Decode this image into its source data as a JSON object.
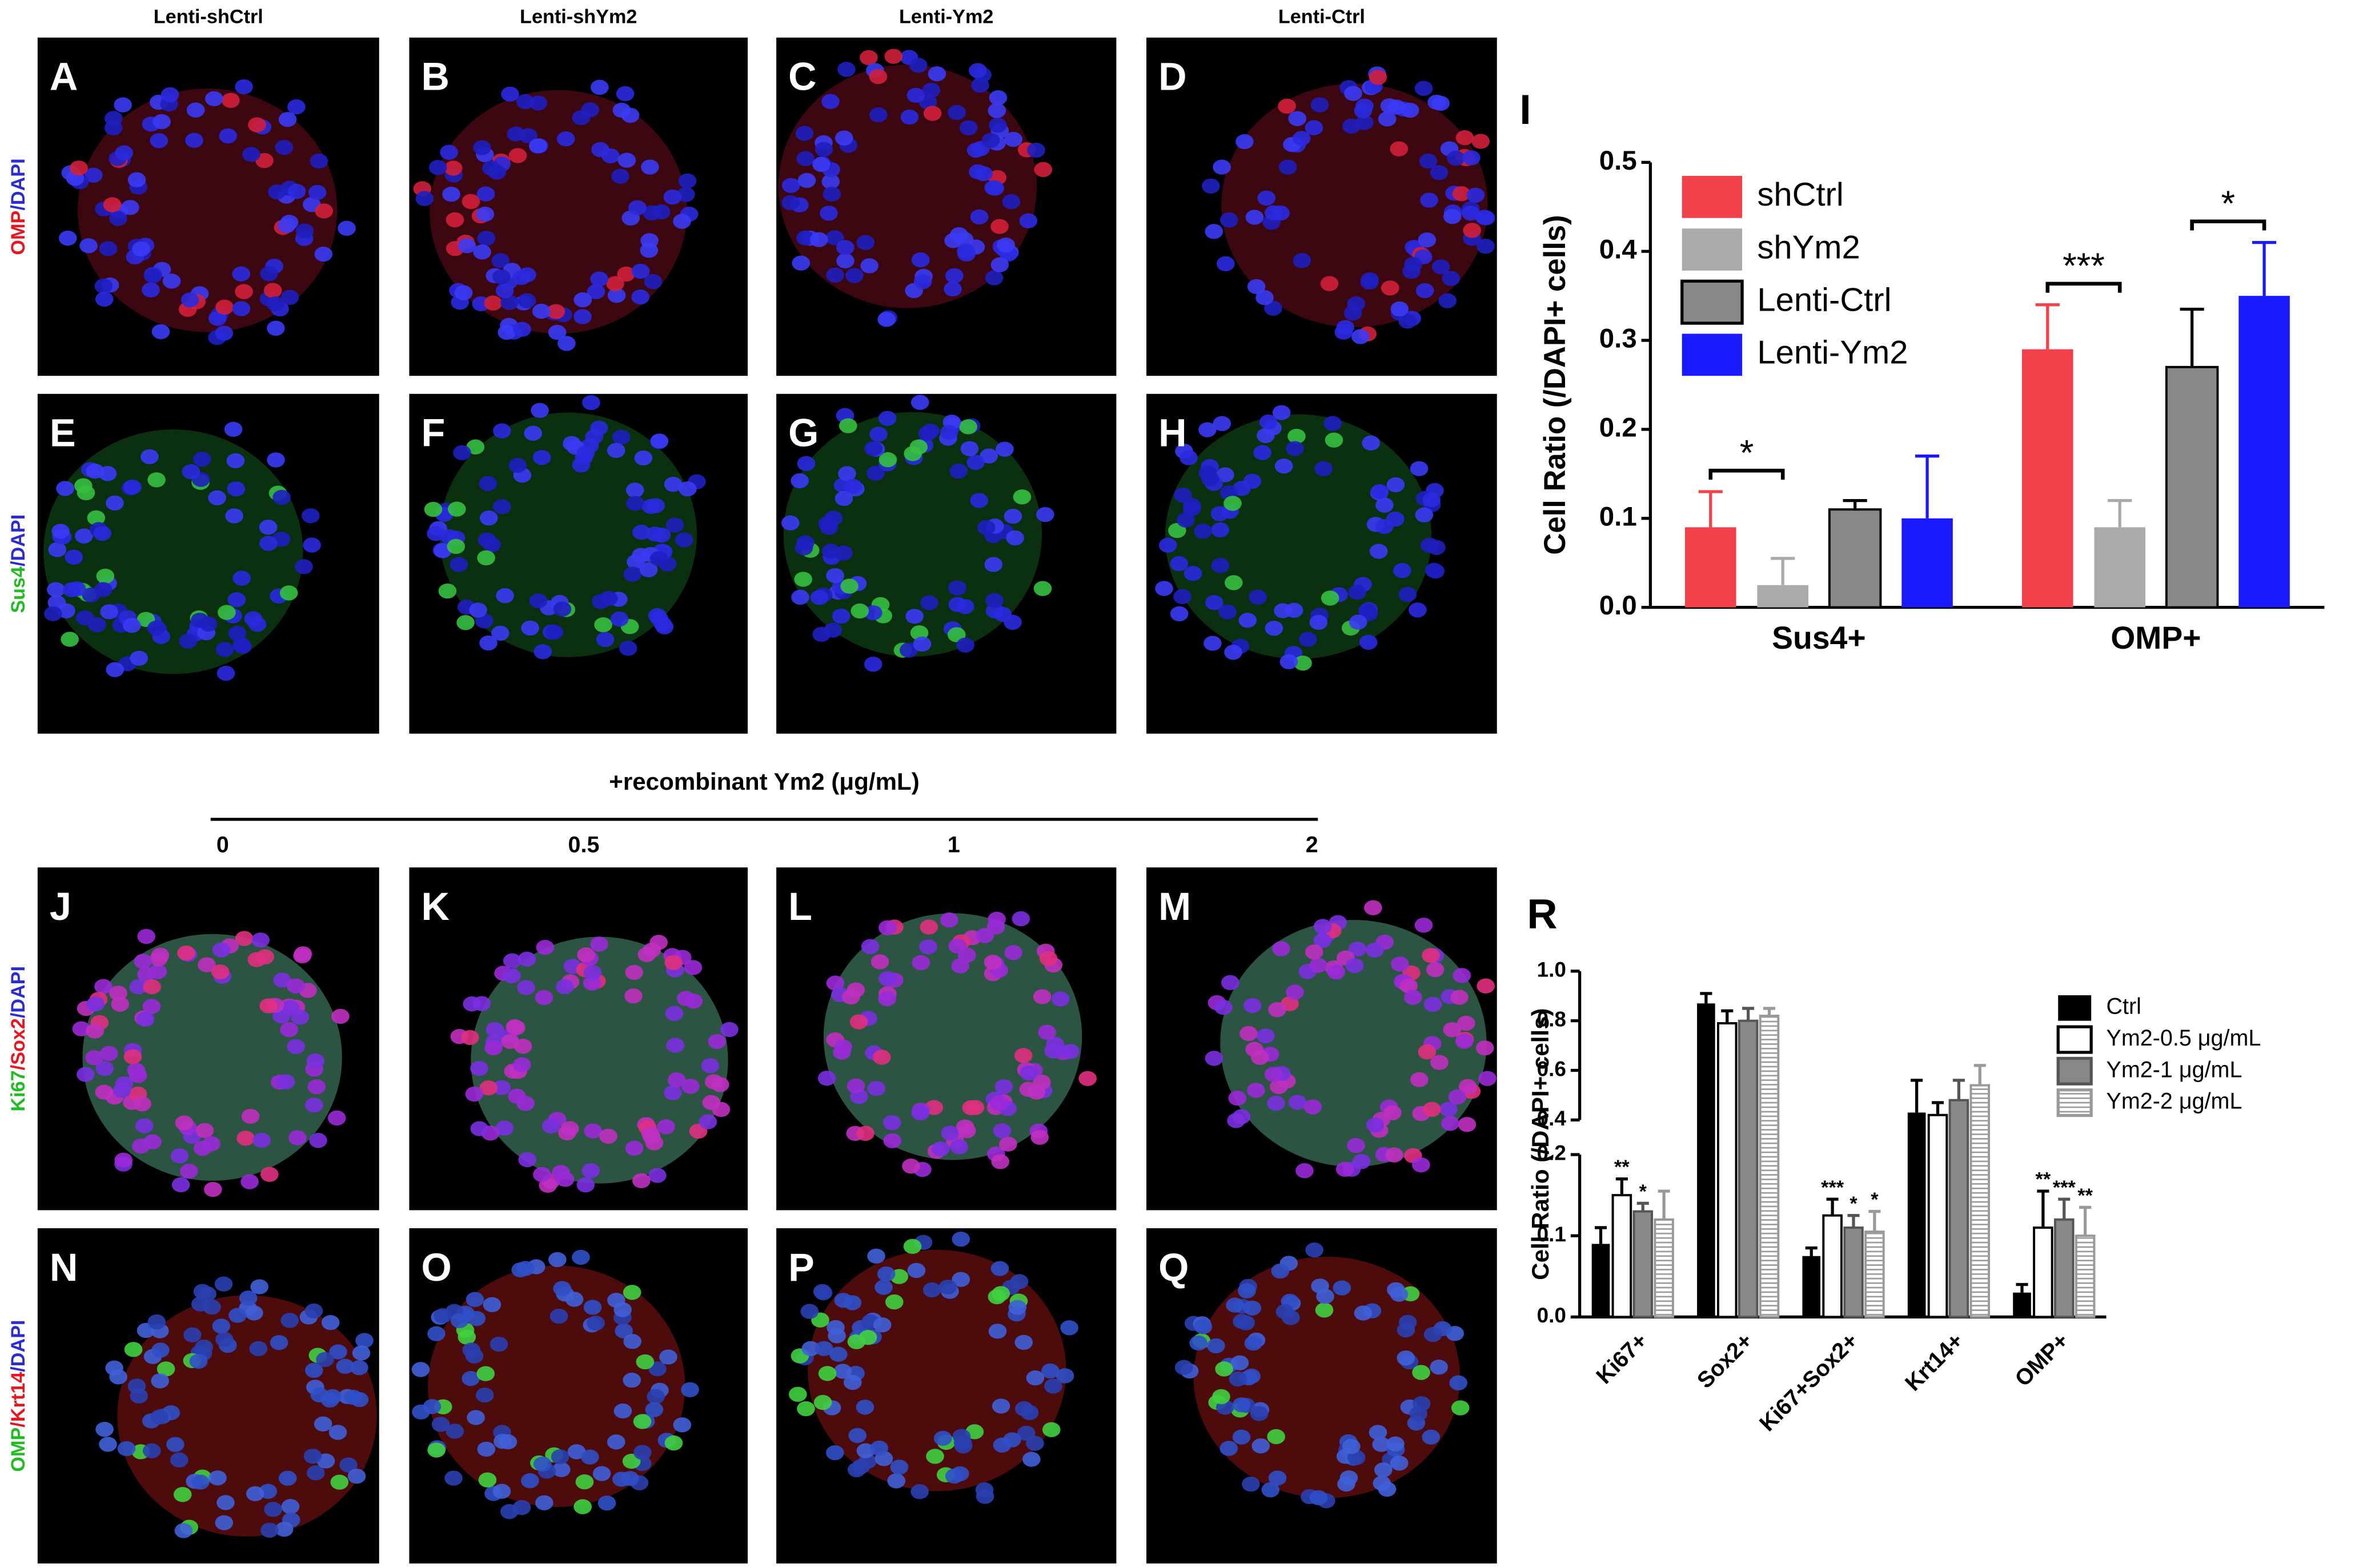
{
  "figure": {
    "columns": [
      "Lenti-shCtrl",
      "Lenti-shYm2",
      "Lenti-Ym2",
      "Lenti-Ctrl"
    ],
    "panels": [
      "A",
      "B",
      "C",
      "D",
      "E",
      "F",
      "G",
      "H",
      "J",
      "K",
      "L",
      "M",
      "N",
      "O",
      "P",
      "Q"
    ],
    "row_labels": [
      [
        {
          "text": "OMP",
          "color": "#e8141e"
        },
        {
          "text": "/DAPI",
          "color": "#2b2bd6"
        }
      ],
      [
        {
          "text": "Sus4",
          "color": "#22bb22"
        },
        {
          "text": "/DAPI",
          "color": "#2b2bd6"
        }
      ],
      [
        {
          "text": "Ki67",
          "color": "#22bb22"
        },
        {
          "text": "/Sox2",
          "color": "#e8141e"
        },
        {
          "text": "/DAPI",
          "color": "#2b2bd6"
        }
      ],
      [
        {
          "text": "OMP",
          "color": "#22bb22"
        },
        {
          "text": "/Krt14",
          "color": "#e8141e"
        },
        {
          "text": "/DAPI",
          "color": "#2b2bd6"
        }
      ]
    ],
    "treatment": "+recombinant Ym2 (μg/mL)",
    "doses": [
      "0",
      "0.5",
      "1",
      "2"
    ]
  },
  "chart_data": [
    {
      "type": "bar",
      "label": "I",
      "ylabel": "Cell Ratio (/DAPI+ cells)",
      "categories": [
        "Sus4+",
        "OMP+"
      ],
      "series": [
        {
          "name": "shCtrl",
          "color": "#f2414b",
          "values": [
            0.09,
            0.29
          ],
          "errors": [
            0.04,
            0.05
          ]
        },
        {
          "name": "shYm2",
          "color": "#aaaaaa",
          "values": [
            0.025,
            0.09
          ],
          "errors": [
            0.03,
            0.03
          ]
        },
        {
          "name": "Lenti-Ctrl",
          "color": "#888888",
          "edgecolor": "#000000",
          "values": [
            0.11,
            0.27
          ],
          "errors": [
            0.01,
            0.065
          ]
        },
        {
          "name": "Lenti-Ym2",
          "color": "#1a1aff",
          "values": [
            0.1,
            0.35
          ],
          "errors": [
            0.07,
            0.06
          ]
        }
      ],
      "ylim": [
        0,
        0.5
      ],
      "yticks": [
        {
          "value": 0,
          "label": "0.0"
        },
        0.1,
        0.2,
        0.3,
        0.4,
        0.5
      ],
      "legend": "upper left",
      "annotations": [
        {
          "label": "*",
          "category": 0,
          "series": [
            0,
            1
          ]
        },
        {
          "label": "***",
          "category": 1,
          "series": [
            0,
            1
          ]
        },
        {
          "label": "*",
          "category": 1,
          "series": [
            2,
            3
          ]
        }
      ]
    },
    {
      "type": "bar",
      "label": "R",
      "ylabel": "Cell Ratio (/DAPI+ cells)",
      "categories": [
        "Ki67+",
        "Sox2+",
        "Ki67+Sox2+",
        "Krt14+",
        "OMP+"
      ],
      "series": [
        {
          "name": "Ctrl",
          "color": "#000000",
          "values": [
            0.09,
            0.87,
            0.075,
            0.43,
            0.03
          ],
          "errors": [
            0.02,
            0.04,
            0.01,
            0.13,
            0.01
          ]
        },
        {
          "name": "Ym2-0.5 μg/mL",
          "color": "#ffffff",
          "edgecolor": "#000000",
          "values": [
            0.15,
            0.79,
            0.125,
            0.42,
            0.11
          ],
          "errors": [
            0.02,
            0.05,
            0.02,
            0.05,
            0.045
          ]
        },
        {
          "name": "Ym2-1 μg/mL",
          "color": "#888888",
          "edgecolor": "#555555",
          "values": [
            0.13,
            0.8,
            0.11,
            0.48,
            0.12
          ],
          "errors": [
            0.01,
            0.05,
            0.015,
            0.08,
            0.025
          ]
        },
        {
          "name": "Ym2-2 μg/mL",
          "color": "#ffffff",
          "edgecolor": "#999999",
          "hatch": true,
          "values": [
            0.12,
            0.82,
            0.105,
            0.54,
            0.1
          ],
          "errors": [
            0.035,
            0.03,
            0.025,
            0.08,
            0.035
          ]
        }
      ],
      "ylim": [
        0,
        1
      ],
      "ybreak": [
        0.2,
        0.4
      ],
      "yticks": [
        {
          "value": 0,
          "label": "0.0"
        },
        0.1,
        0.2,
        0.4,
        0.6,
        0.8,
        {
          "value": 1,
          "label": "1.0"
        }
      ],
      "legend": "upper right",
      "annotations": [
        {
          "label": "**",
          "category": 0,
          "series": 1
        },
        {
          "label": "*",
          "category": 0,
          "series": 2
        },
        {
          "label": "***",
          "category": 2,
          "series": 1
        },
        {
          "label": "*",
          "category": 2,
          "series": 2
        },
        {
          "label": "*",
          "category": 2,
          "series": 3
        },
        {
          "label": "**",
          "category": 4,
          "series": 1
        },
        {
          "label": "***",
          "category": 4,
          "series": 2
        },
        {
          "label": "**",
          "category": 4,
          "series": 3
        }
      ]
    }
  ]
}
